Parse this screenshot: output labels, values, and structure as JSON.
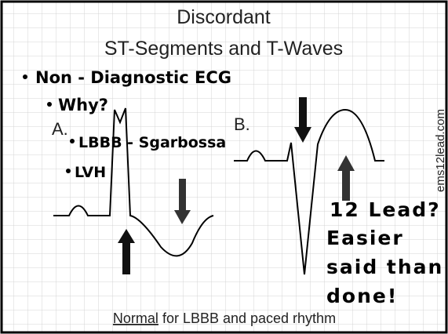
{
  "title": {
    "line1": "Discordant",
    "line2": "ST-Segments and T-Waves"
  },
  "bullets": [
    "Non - Diagnostic ECG",
    "Why?",
    "LBBB - Sgarbossa",
    "LVH"
  ],
  "labels": {
    "a": "A.",
    "b": "B."
  },
  "watermark": "ems12lead.com",
  "note": [
    "12 Lead?",
    "Easier",
    "said than",
    "done!"
  ],
  "footer": {
    "underlined": "Normal",
    "rest": " for LBBB and paced rhythm"
  }
}
